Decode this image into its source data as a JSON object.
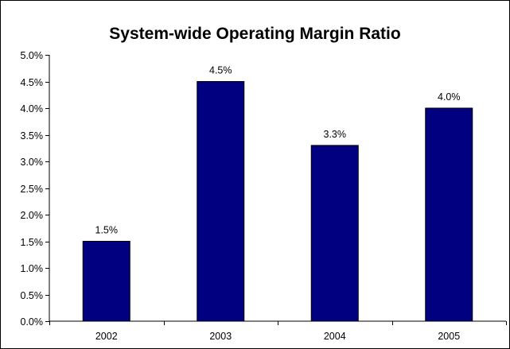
{
  "chart_data": {
    "type": "bar",
    "title": "System-wide Operating Margin Ratio",
    "categories": [
      "2002",
      "2003",
      "2004",
      "2005"
    ],
    "values": [
      1.5,
      4.5,
      3.3,
      4.0
    ],
    "value_labels": [
      "1.5%",
      "4.5%",
      "3.3%",
      "4.0%"
    ],
    "ylim": [
      0,
      5
    ],
    "yticks": [
      0,
      0.5,
      1.0,
      1.5,
      2.0,
      2.5,
      3.0,
      3.5,
      4.0,
      4.5,
      5.0
    ],
    "ytick_labels": [
      "0.0%",
      "0.5%",
      "1.0%",
      "1.5%",
      "2.0%",
      "2.5%",
      "3.0%",
      "3.5%",
      "4.0%",
      "4.5%",
      "5.0%"
    ],
    "xlabel": "",
    "ylabel": "",
    "grid": false,
    "legend": "none",
    "bar_color": "#000080",
    "bar_edge_color": "#000000"
  }
}
